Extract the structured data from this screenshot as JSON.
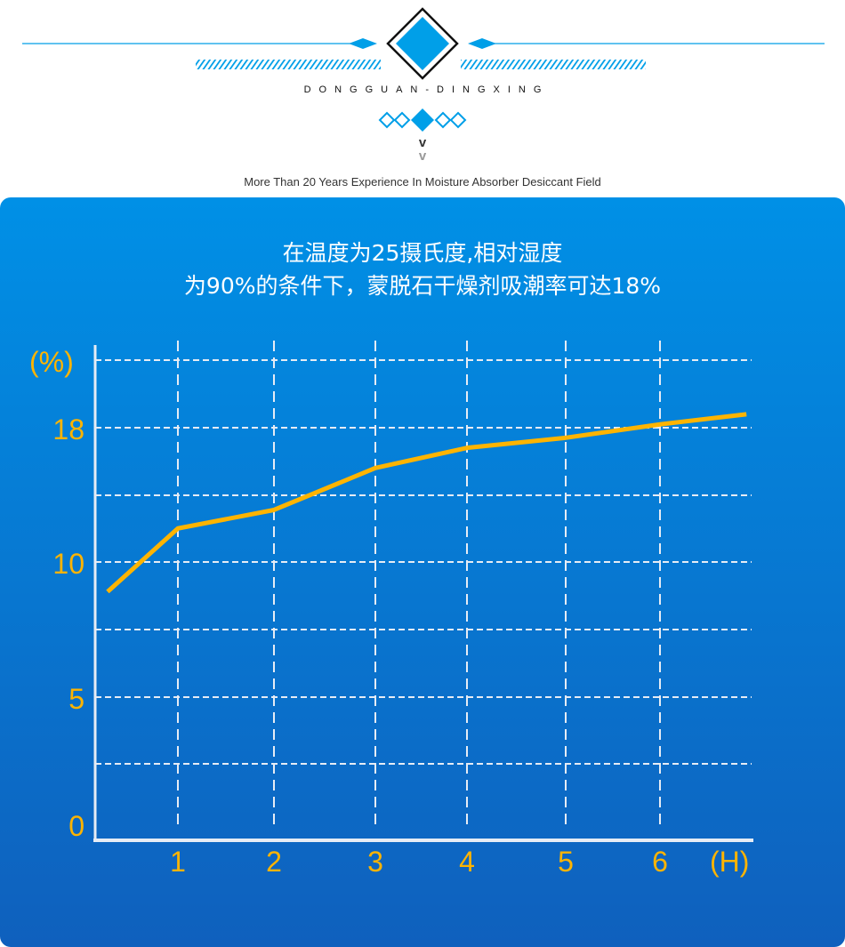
{
  "header": {
    "brand": "DONGGUAN-DINGXING",
    "chevron": "v",
    "tagline": "More Than 20 Years Experience In Moisture Absorber Desiccant Field",
    "accent_color": "#009fe8"
  },
  "chart_data": {
    "type": "line",
    "title_lines": [
      "在温度为25摄氏度,相对湿度",
      "为90%的条件下，蒙脱石干燥剂吸潮率可达18%"
    ],
    "xlabel": "(H)",
    "ylabel": "(%)",
    "x_ticks": [
      "1",
      "2",
      "3",
      "4",
      "5",
      "6"
    ],
    "y_ticks": [
      "0",
      "5",
      "10",
      "18"
    ],
    "grid": true,
    "line_color": "#ffb400",
    "x": [
      0.15,
      1,
      2,
      3,
      4,
      5,
      6,
      6.9
    ],
    "values": [
      8.9,
      12.0,
      13.1,
      15.6,
      16.8,
      17.4,
      18.2,
      18.8
    ]
  }
}
